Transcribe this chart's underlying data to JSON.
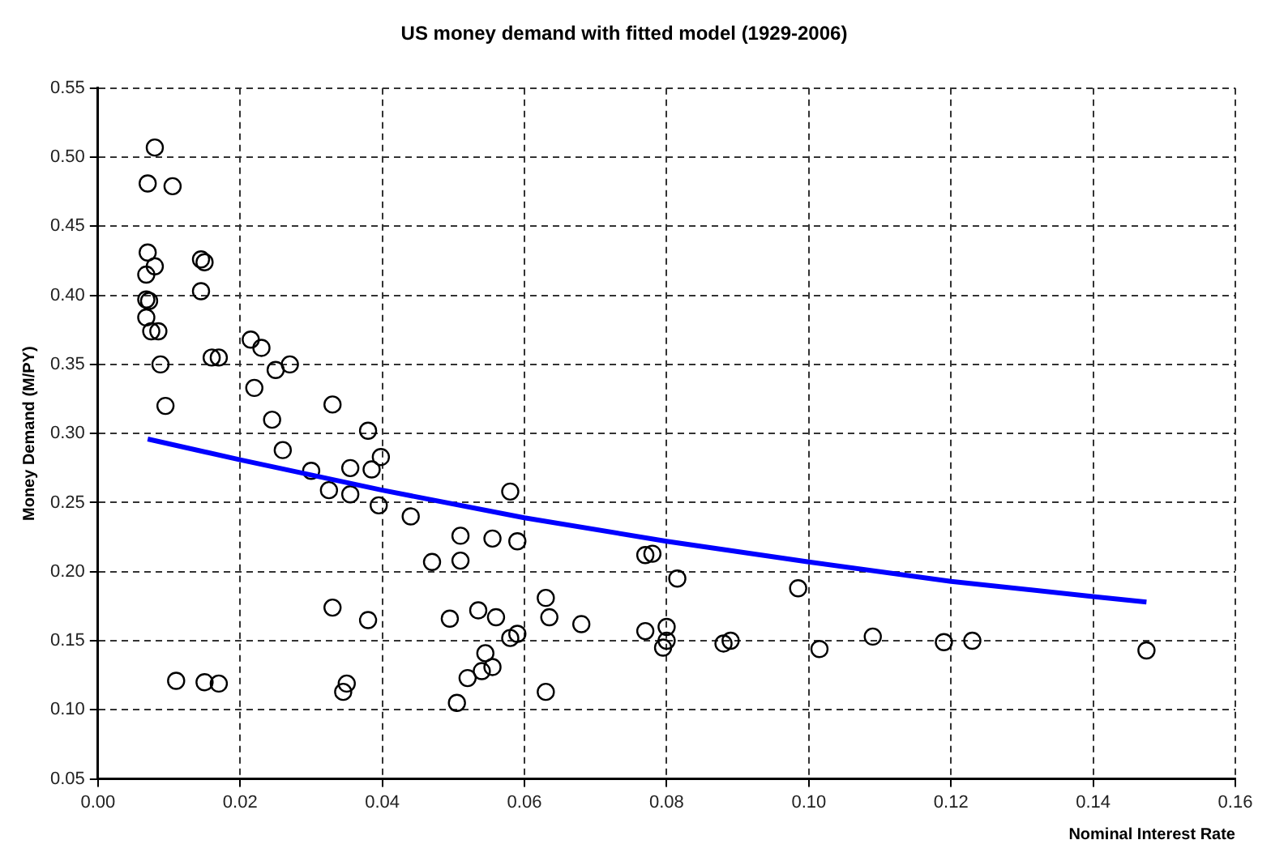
{
  "chart_data": {
    "type": "scatter",
    "title": "US money demand with fitted model (1929-2006)",
    "xlabel": "Nominal Interest Rate",
    "ylabel": "Money Demand (M/PY)",
    "xlim": [
      0,
      0.16
    ],
    "xticks": [
      {
        "value": 0,
        "label": "0.00"
      },
      {
        "value": 0.02,
        "label": "0.02"
      },
      {
        "value": 0.04,
        "label": "0.04"
      },
      {
        "value": 0.06,
        "label": "0.06"
      },
      {
        "value": 0.08,
        "label": "0.08"
      },
      {
        "value": 0.1,
        "label": "0.10"
      },
      {
        "value": 0.12,
        "label": "0.12"
      },
      {
        "value": 0.14,
        "label": "0.14"
      },
      {
        "value": 0.16,
        "label": "0.16"
      }
    ],
    "ylim": [
      0.05,
      0.55
    ],
    "yticks": [
      {
        "value": 0.05,
        "label": "0.05"
      },
      {
        "value": 0.1,
        "label": "0.10"
      },
      {
        "value": 0.15,
        "label": "0.15"
      },
      {
        "value": 0.2,
        "label": "0.20"
      },
      {
        "value": 0.25,
        "label": "0.25"
      },
      {
        "value": 0.3,
        "label": "0.30"
      },
      {
        "value": 0.35,
        "label": "0.35"
      },
      {
        "value": 0.4,
        "label": "0.40"
      },
      {
        "value": 0.45,
        "label": "0.45"
      },
      {
        "value": 0.5,
        "label": "0.50"
      },
      {
        "value": 0.55,
        "label": "0.55"
      }
    ],
    "grid": true,
    "legend": false,
    "marker": "circle",
    "series": [
      {
        "type": "scatter",
        "color": "#000000",
        "x": [
          0.008,
          0.007,
          0.0105,
          0.007,
          0.008,
          0.0068,
          0.0068,
          0.0072,
          0.0068,
          0.0075,
          0.0085,
          0.0088,
          0.0095,
          0.0145,
          0.015,
          0.0145,
          0.016,
          0.017,
          0.0215,
          0.023,
          0.025,
          0.027,
          0.022,
          0.0245,
          0.026,
          0.03,
          0.033,
          0.0325,
          0.0355,
          0.0355,
          0.038,
          0.0385,
          0.0398,
          0.0395,
          0.044,
          0.047,
          0.051,
          0.051,
          0.0555,
          0.058,
          0.059,
          0.011,
          0.015,
          0.017,
          0.033,
          0.038,
          0.035,
          0.0345,
          0.0495,
          0.0505,
          0.052,
          0.0535,
          0.0545,
          0.054,
          0.0555,
          0.056,
          0.058,
          0.059,
          0.063,
          0.0635,
          0.063,
          0.068,
          0.077,
          0.077,
          0.078,
          0.08,
          0.08,
          0.0795,
          0.0815,
          0.088,
          0.089,
          0.0985,
          0.1015,
          0.109,
          0.119,
          0.123,
          0.1475
        ],
        "values": [
          0.507,
          0.481,
          0.479,
          0.431,
          0.421,
          0.415,
          0.397,
          0.396,
          0.384,
          0.374,
          0.374,
          0.35,
          0.32,
          0.426,
          0.424,
          0.403,
          0.355,
          0.355,
          0.368,
          0.362,
          0.346,
          0.35,
          0.333,
          0.31,
          0.288,
          0.273,
          0.321,
          0.259,
          0.256,
          0.275,
          0.302,
          0.274,
          0.283,
          0.248,
          0.24,
          0.207,
          0.226,
          0.208,
          0.224,
          0.258,
          0.222,
          0.121,
          0.12,
          0.119,
          0.174,
          0.165,
          0.119,
          0.113,
          0.166,
          0.105,
          0.123,
          0.172,
          0.141,
          0.128,
          0.131,
          0.167,
          0.152,
          0.155,
          0.181,
          0.167,
          0.113,
          0.162,
          0.157,
          0.212,
          0.213,
          0.16,
          0.15,
          0.145,
          0.195,
          0.148,
          0.15,
          0.188,
          0.144,
          0.153,
          0.149,
          0.15,
          0.143
        ]
      },
      {
        "type": "line",
        "color": "#0000ff",
        "marker": "none",
        "x": [
          0.007,
          0.02,
          0.04,
          0.06,
          0.08,
          0.1,
          0.12,
          0.14,
          0.1475
        ],
        "values": [
          0.296,
          0.281,
          0.259,
          0.239,
          0.222,
          0.207,
          0.193,
          0.182,
          0.178
        ]
      }
    ]
  }
}
